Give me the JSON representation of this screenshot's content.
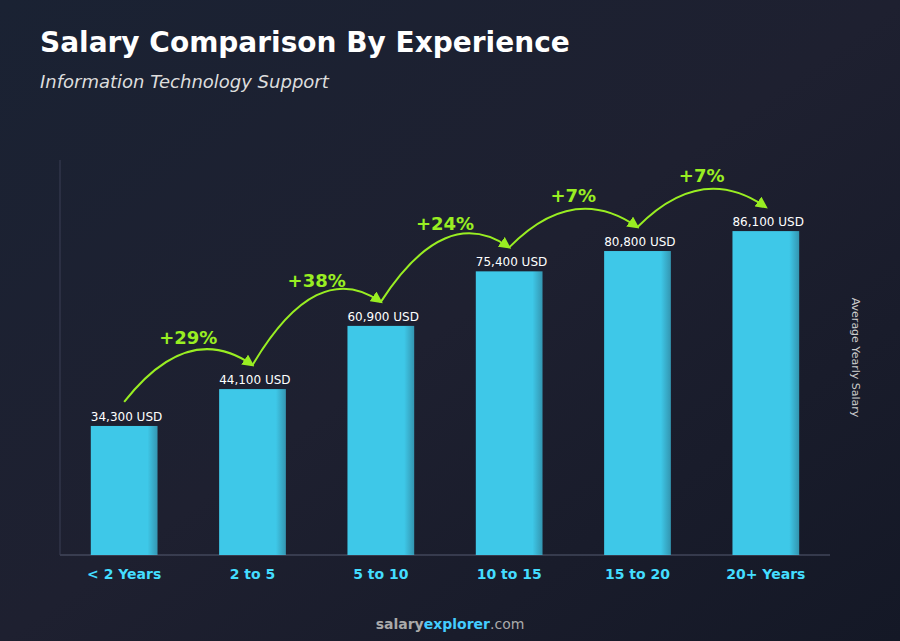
{
  "chart_data": {
    "type": "bar",
    "title": "Salary Comparison By Experience",
    "subtitle": "Information Technology Support",
    "categories": [
      "< 2 Years",
      "2 to 5",
      "5 to 10",
      "10 to 15",
      "15 to 20",
      "20+ Years"
    ],
    "values": [
      34300,
      44100,
      60900,
      75400,
      80800,
      86100
    ],
    "value_labels": [
      "34,300 USD",
      "44,100 USD",
      "60,900 USD",
      "75,400 USD",
      "80,800 USD",
      "86,100 USD"
    ],
    "data_labels": true,
    "annotations": [
      "+29%",
      "+38%",
      "+24%",
      "+7%",
      "+7%"
    ],
    "ylabel": "Average Yearly Salary",
    "footer": [
      "salary",
      "explorer",
      ".com"
    ],
    "color": "#3ec8e8",
    "ylim": [
      0,
      105000
    ],
    "tick_labels": "x",
    "grid": false
  }
}
